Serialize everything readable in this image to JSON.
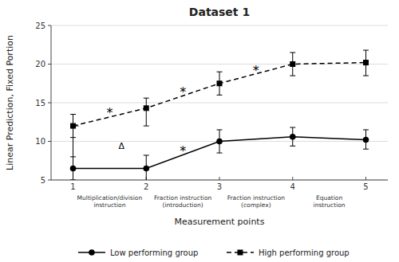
{
  "chart_data": {
    "type": "line",
    "title": "Dataset 1",
    "x_label": "Measurement points",
    "y_label": "Linear Prediction, Fixed Portion",
    "x": [
      1,
      2,
      3,
      4,
      5
    ],
    "xlim": [
      0.7,
      5.3
    ],
    "xticks": [
      1,
      2,
      3,
      4,
      5
    ],
    "ylim": [
      5,
      25
    ],
    "yticks": [
      5,
      10,
      15,
      20,
      25
    ],
    "grid": true,
    "legend": "bottom",
    "series": [
      {
        "name": "Low performing group",
        "color": "black",
        "marker": "circle",
        "line_style": "solid",
        "values": [
          6.5,
          6.5,
          10.0,
          10.6,
          10.2
        ],
        "ci_low": [
          5.0,
          4.8,
          8.5,
          9.4,
          9.0
        ],
        "ci_high": [
          8.0,
          8.2,
          11.5,
          11.8,
          11.5
        ]
      },
      {
        "name": "High performing group",
        "color": "black",
        "marker": "square",
        "line_style": "dashed",
        "values": [
          12.0,
          14.3,
          17.5,
          20.0,
          20.2
        ],
        "ci_low": [
          10.5,
          12.0,
          16.0,
          18.5,
          18.5
        ],
        "ci_high": [
          13.5,
          15.6,
          19.0,
          21.5,
          21.8
        ]
      }
    ],
    "secondary_xticks": [
      {
        "value": 1.5,
        "label": "Multiplication/division instruction"
      },
      {
        "value": 2.5,
        "label": "Fraction instruction (introduction)"
      },
      {
        "value": 3.5,
        "label": "Fraction instruction (complex)"
      },
      {
        "value": 4.5,
        "label": "Equation instruction"
      }
    ],
    "annotations": [
      {
        "text": "*",
        "x": 1.5,
        "y": 13.7
      },
      {
        "text": "*",
        "x": 2.5,
        "y": 16.4
      },
      {
        "text": "*",
        "x": 3.5,
        "y": 19.2
      },
      {
        "text": "*",
        "x": 2.5,
        "y": 8.8
      },
      {
        "text": "Δ",
        "x": 1.62,
        "y": 9.4
      }
    ],
    "bracket": {
      "x": 1.0,
      "y1": 6.5,
      "y2": 12.0
    }
  }
}
